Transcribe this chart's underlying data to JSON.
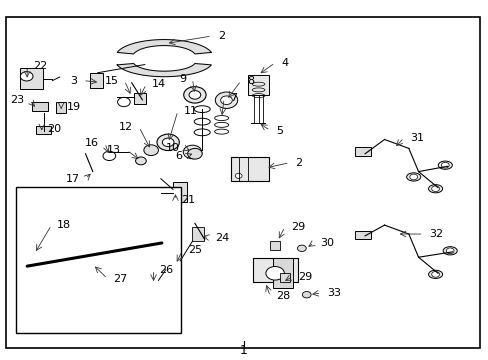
{
  "background_color": "#ffffff",
  "line_color": "#000000",
  "text_color": "#000000",
  "leader_color": "#333333"
}
